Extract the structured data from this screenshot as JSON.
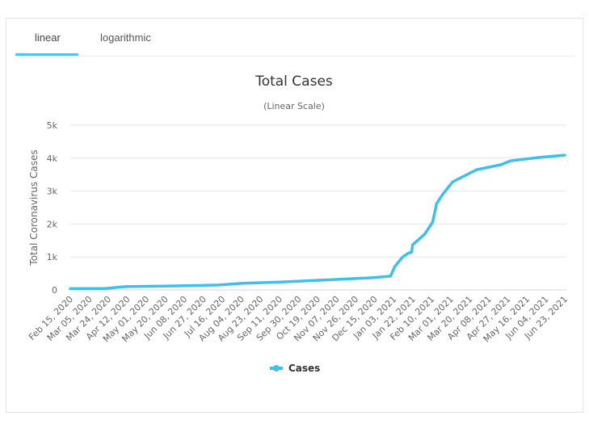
{
  "tabs": [
    {
      "label": "linear",
      "active": true
    },
    {
      "label": "logarithmic",
      "active": false
    }
  ],
  "accent_color": "#3fbfe9",
  "chart_data": {
    "type": "line",
    "title": "Total Cases",
    "subtitle": "(Linear Scale)",
    "xlabel": "",
    "ylabel": "Total Coronavirus Cases",
    "ylim": [
      0,
      5000
    ],
    "y_ticks": [
      {
        "value": 0,
        "label": "0"
      },
      {
        "value": 1000,
        "label": "1k"
      },
      {
        "value": 2000,
        "label": "2k"
      },
      {
        "value": 3000,
        "label": "3k"
      },
      {
        "value": 4000,
        "label": "4k"
      },
      {
        "value": 5000,
        "label": "5k"
      }
    ],
    "x_tick_labels": [
      "Feb 15, 2020",
      "Mar 05, 2020",
      "Mar 24, 2020",
      "Apr 12, 2020",
      "May 01, 2020",
      "May 20, 2020",
      "Jun 08, 2020",
      "Jun 27, 2020",
      "Jul 16, 2020",
      "Aug 04, 2020",
      "Aug 23, 2020",
      "Sep 11, 2020",
      "Sep 30, 2020",
      "Oct 19, 2020",
      "Nov 07, 2020",
      "Nov 26, 2020",
      "Dec 15, 2020",
      "Jan 03, 2021",
      "Jan 22, 2021",
      "Feb 10, 2021",
      "Mar 01, 2021",
      "Mar 20, 2021",
      "Apr 08, 2021",
      "Apr 27, 2021",
      "May 16, 2021",
      "Jun 04, 2021",
      "Jun 23, 2021"
    ],
    "x_day_range": [
      0,
      494
    ],
    "grid": true,
    "legend": "bottom-center",
    "series": [
      {
        "name": "Cases",
        "color": "#3fbfe9",
        "points": [
          {
            "day": 0,
            "value": 40
          },
          {
            "day": 35,
            "value": 45
          },
          {
            "day": 55,
            "value": 100
          },
          {
            "day": 100,
            "value": 120
          },
          {
            "day": 148,
            "value": 150
          },
          {
            "day": 172,
            "value": 200
          },
          {
            "day": 210,
            "value": 240
          },
          {
            "day": 253,
            "value": 300
          },
          {
            "day": 302,
            "value": 370
          },
          {
            "day": 320,
            "value": 420
          },
          {
            "day": 324,
            "value": 700
          },
          {
            "day": 332,
            "value": 1000
          },
          {
            "day": 338,
            "value": 1120
          },
          {
            "day": 341,
            "value": 1150
          },
          {
            "day": 342,
            "value": 1370
          },
          {
            "day": 354,
            "value": 1690
          },
          {
            "day": 362,
            "value": 2060
          },
          {
            "day": 366,
            "value": 2620
          },
          {
            "day": 372,
            "value": 2900
          },
          {
            "day": 382,
            "value": 3280
          },
          {
            "day": 406,
            "value": 3650
          },
          {
            "day": 430,
            "value": 3800
          },
          {
            "day": 440,
            "value": 3920
          },
          {
            "day": 468,
            "value": 4020
          },
          {
            "day": 494,
            "value": 4090
          }
        ]
      }
    ]
  }
}
